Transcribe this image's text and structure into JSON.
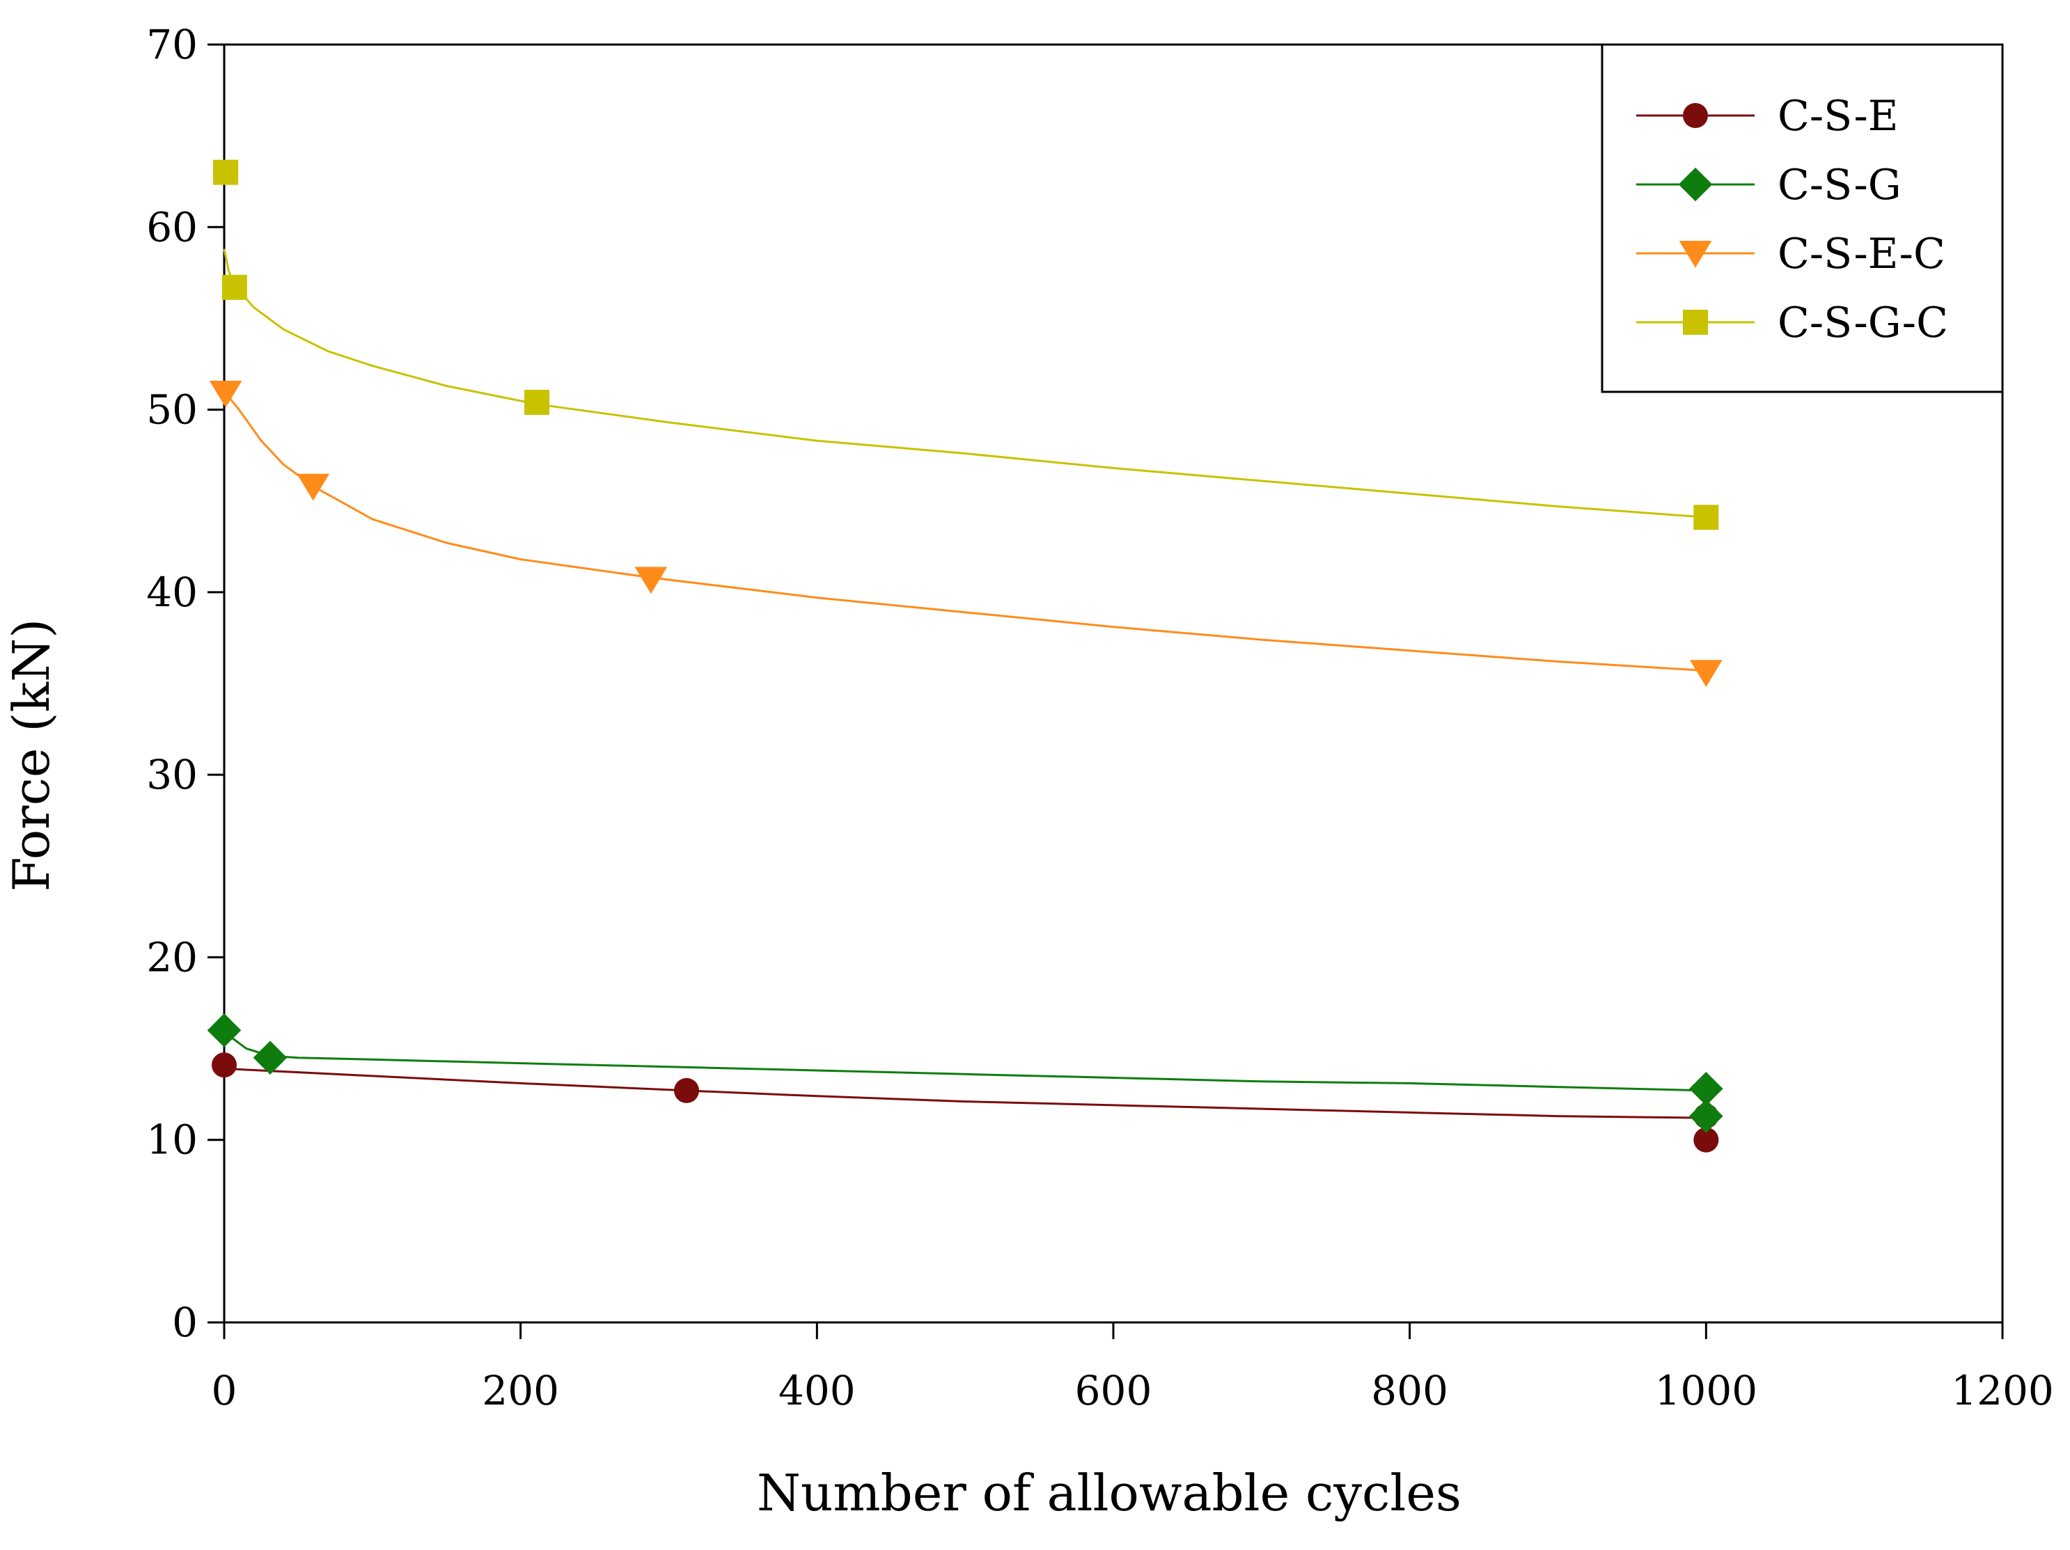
{
  "chart_data": {
    "type": "line",
    "title": "",
    "xlabel": "Number of allowable cycles",
    "ylabel": "Force (kN)",
    "xlim": [
      0,
      1200
    ],
    "ylim": [
      0,
      70
    ],
    "xticks": [
      0,
      200,
      400,
      600,
      800,
      1000,
      1200
    ],
    "yticks": [
      0,
      10,
      20,
      30,
      40,
      50,
      60,
      70
    ],
    "xtick_labels": [
      "0",
      "200",
      "400",
      "600",
      "800",
      "1000",
      "1200"
    ],
    "ytick_labels": [
      "0",
      "10",
      "20",
      "30",
      "40",
      "50",
      "60",
      "70"
    ],
    "grid": false,
    "legend_position": "top-right",
    "series": [
      {
        "name": "C-S-E",
        "color": "#7b0c0c",
        "marker": "circle",
        "points": [
          [
            0,
            14.1
          ],
          [
            312,
            12.7
          ],
          [
            1000,
            11.3
          ],
          [
            1000,
            10.0
          ]
        ],
        "curve": [
          [
            0,
            13.9
          ],
          [
            100,
            13.5
          ],
          [
            200,
            13.1
          ],
          [
            312,
            12.7
          ],
          [
            400,
            12.4
          ],
          [
            500,
            12.1
          ],
          [
            600,
            11.9
          ],
          [
            700,
            11.7
          ],
          [
            800,
            11.5
          ],
          [
            900,
            11.3
          ],
          [
            1000,
            11.2
          ]
        ]
      },
      {
        "name": "C-S-G",
        "color": "#0e7d0e",
        "marker": "diamond",
        "points": [
          [
            0,
            16.0
          ],
          [
            31,
            14.5
          ],
          [
            1000,
            12.8
          ],
          [
            1000,
            11.3
          ]
        ],
        "curve": [
          [
            0,
            15.9
          ],
          [
            15,
            15.0
          ],
          [
            31,
            14.6
          ],
          [
            50,
            14.5
          ],
          [
            100,
            14.4
          ],
          [
            200,
            14.2
          ],
          [
            300,
            14.0
          ],
          [
            400,
            13.8
          ],
          [
            500,
            13.6
          ],
          [
            600,
            13.4
          ],
          [
            700,
            13.2
          ],
          [
            800,
            13.1
          ],
          [
            900,
            12.9
          ],
          [
            1000,
            12.7
          ]
        ]
      },
      {
        "name": "C-S-E-C",
        "color": "#ff8c1a",
        "marker": "triangle-down",
        "points": [
          [
            1,
            50.9
          ],
          [
            60,
            45.8
          ],
          [
            288,
            40.7
          ],
          [
            1000,
            35.6
          ]
        ],
        "curve": [
          [
            0,
            51.0
          ],
          [
            10,
            50.0
          ],
          [
            25,
            48.3
          ],
          [
            40,
            47.0
          ],
          [
            60,
            45.8
          ],
          [
            100,
            44.0
          ],
          [
            150,
            42.7
          ],
          [
            200,
            41.8
          ],
          [
            288,
            40.8
          ],
          [
            400,
            39.7
          ],
          [
            500,
            38.9
          ],
          [
            600,
            38.1
          ],
          [
            700,
            37.4
          ],
          [
            800,
            36.8
          ],
          [
            900,
            36.2
          ],
          [
            1000,
            35.7
          ]
        ]
      },
      {
        "name": "C-S-G-C",
        "color": "#c8c200",
        "marker": "square",
        "points": [
          [
            1,
            63.0
          ],
          [
            7,
            56.7
          ],
          [
            211,
            50.4
          ],
          [
            1000,
            44.1
          ]
        ],
        "curve": [
          [
            0,
            58.8
          ],
          [
            3,
            57.6
          ],
          [
            7,
            56.8
          ],
          [
            20,
            55.6
          ],
          [
            40,
            54.4
          ],
          [
            70,
            53.2
          ],
          [
            100,
            52.4
          ],
          [
            150,
            51.3
          ],
          [
            211,
            50.3
          ],
          [
            300,
            49.3
          ],
          [
            400,
            48.3
          ],
          [
            500,
            47.6
          ],
          [
            600,
            46.8
          ],
          [
            700,
            46.1
          ],
          [
            800,
            45.4
          ],
          [
            900,
            44.7
          ],
          [
            1000,
            44.1
          ]
        ]
      }
    ]
  }
}
